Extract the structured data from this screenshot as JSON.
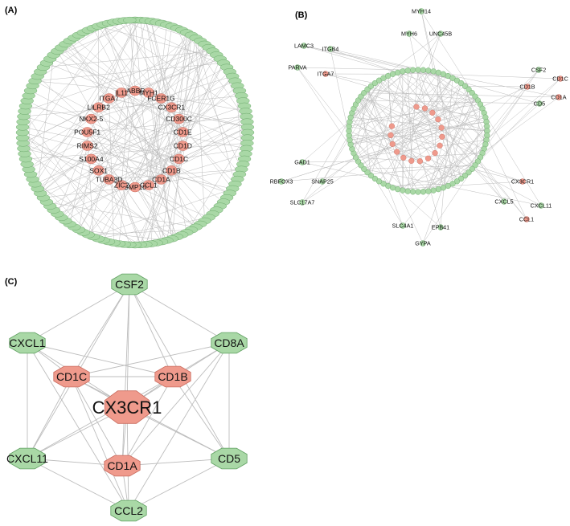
{
  "colors": {
    "green": "#a9d8a6",
    "green_stroke": "#5f9f60",
    "red": "#ef9a8c",
    "red_stroke": "#c96b5e",
    "edge": "#bdbdbd"
  },
  "panel_a": {
    "label": "(A)",
    "inner_nodes": [
      "GABBR1",
      "MYH1",
      "FCER1G",
      "CX3CR1",
      "CD300C",
      "CD1E",
      "CD1D",
      "CD1C",
      "CD1B",
      "CD1A",
      "CCL1",
      "BMP10",
      "ZIC2",
      "TUBA3D",
      "SOX1",
      "S100A4",
      "RIMS2",
      "POU5F1",
      "NKX2-5",
      "LILRB2",
      "ITGA7",
      "IL11"
    ],
    "outer_ring_count": 132
  },
  "panel_b": {
    "label": "(B)",
    "satellites": [
      "MYH14",
      "MYH6",
      "UNC45B",
      "LAMC3",
      "ITGB4",
      "PARVA",
      "ITGA7",
      "CSF2",
      "CD1C",
      "CD1B",
      "CD1A",
      "CD5",
      "GAD1",
      "RBFOX3",
      "SNAP25",
      "SLC17A7",
      "CX3CR1",
      "CXCL5",
      "CXCL11",
      "CCL1",
      "SLC4A1",
      "EPB41",
      "GYPA"
    ],
    "red_satellites": [
      "ITGA7",
      "CD1C",
      "CD1B",
      "CD1A",
      "CX3CR1",
      "CCL1"
    ],
    "ring_green_count": 84,
    "ring_red_count": 16
  },
  "panel_c": {
    "label": "(C)",
    "hub": "CX3CR1",
    "nodes": [
      {
        "id": "CSF2",
        "type": "green"
      },
      {
        "id": "CXCL1",
        "type": "green"
      },
      {
        "id": "CD8A",
        "type": "green"
      },
      {
        "id": "CD1C",
        "type": "red"
      },
      {
        "id": "CD1B",
        "type": "red"
      },
      {
        "id": "CX3CR1",
        "type": "red"
      },
      {
        "id": "CXCL11",
        "type": "green"
      },
      {
        "id": "CD5",
        "type": "green"
      },
      {
        "id": "CD1A",
        "type": "red"
      },
      {
        "id": "CCL2",
        "type": "green"
      }
    ],
    "edges": [
      [
        "CSF2",
        "CXCL1"
      ],
      [
        "CSF2",
        "CD8A"
      ],
      [
        "CSF2",
        "CD1C"
      ],
      [
        "CSF2",
        "CD1B"
      ],
      [
        "CSF2",
        "CX3CR1"
      ],
      [
        "CSF2",
        "CD1A"
      ],
      [
        "CSF2",
        "CD5"
      ],
      [
        "CSF2",
        "CXCL11"
      ],
      [
        "CXCL1",
        "CD1C"
      ],
      [
        "CXCL1",
        "CXCL11"
      ],
      [
        "CXCL1",
        "CX3CR1"
      ],
      [
        "CXCL1",
        "CCL2"
      ],
      [
        "CXCL1",
        "CD1B"
      ],
      [
        "CD8A",
        "CD1B"
      ],
      [
        "CD8A",
        "CD5"
      ],
      [
        "CD8A",
        "CX3CR1"
      ],
      [
        "CD8A",
        "CD1C"
      ],
      [
        "CD8A",
        "CD1A"
      ],
      [
        "CD8A",
        "CCL2"
      ],
      [
        "CD1C",
        "CD1B"
      ],
      [
        "CD1C",
        "CX3CR1"
      ],
      [
        "CD1C",
        "CD1A"
      ],
      [
        "CD1C",
        "CXCL11"
      ],
      [
        "CD1C",
        "CD5"
      ],
      [
        "CD1C",
        "CCL2"
      ],
      [
        "CD1B",
        "CX3CR1"
      ],
      [
        "CD1B",
        "CD1A"
      ],
      [
        "CD1B",
        "CD5"
      ],
      [
        "CD1B",
        "CXCL11"
      ],
      [
        "CX3CR1",
        "CD1A"
      ],
      [
        "CX3CR1",
        "CD5"
      ],
      [
        "CX3CR1",
        "CXCL11"
      ],
      [
        "CX3CR1",
        "CCL2"
      ],
      [
        "CXCL11",
        "CCL2"
      ],
      [
        "CXCL11",
        "CD1A"
      ],
      [
        "CD5",
        "CCL2"
      ],
      [
        "CD5",
        "CD1A"
      ],
      [
        "CD1A",
        "CCL2"
      ]
    ]
  }
}
